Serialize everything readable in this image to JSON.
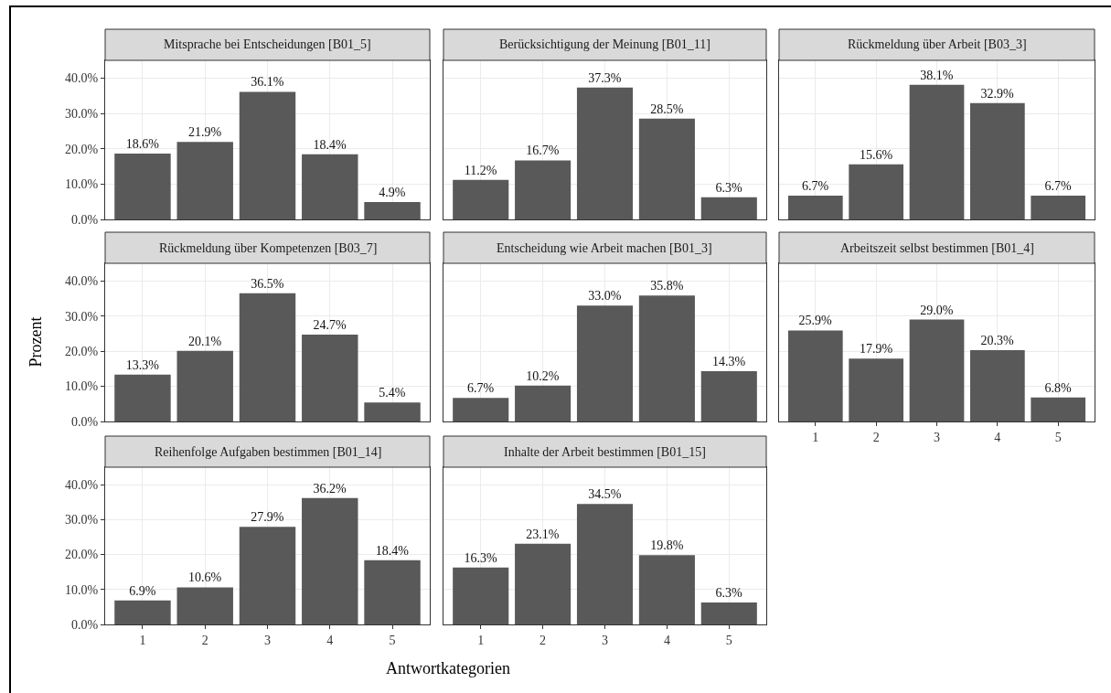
{
  "chart_data": [
    {
      "type": "bar",
      "title": "Mitsprache bei Entscheidungen [B01_5]",
      "categories": [
        "1",
        "2",
        "3",
        "4",
        "5"
      ],
      "values": [
        18.6,
        21.9,
        36.1,
        18.4,
        4.9
      ],
      "value_labels": [
        "18.6%",
        "21.9%",
        "36.1%",
        "18.4%",
        "4.9%"
      ],
      "color": "#595959",
      "ylim": [
        0,
        45
      ],
      "yticks": [
        {
          "value": 0,
          "label": "0.0%"
        },
        {
          "value": 10,
          "label": "10.0%"
        },
        {
          "value": 20,
          "label": "20.0%"
        },
        {
          "value": 30,
          "label": "30.0%"
        },
        {
          "value": 40,
          "label": "40.0%"
        }
      ],
      "grid": true,
      "tick_labels": "y"
    },
    {
      "type": "bar",
      "title": "Berücksichtigung der Meinung [B01_11]",
      "categories": [
        "1",
        "2",
        "3",
        "4",
        "5"
      ],
      "values": [
        11.2,
        16.7,
        37.3,
        28.5,
        6.3
      ],
      "value_labels": [
        "11.2%",
        "16.7%",
        "37.3%",
        "28.5%",
        "6.3%"
      ],
      "color": "#595959",
      "ylim": [
        0,
        45
      ],
      "yticks": [
        {
          "value": 0,
          "label": null
        },
        {
          "value": 10,
          "label": null
        },
        {
          "value": 20,
          "label": null
        },
        {
          "value": 30,
          "label": null
        },
        {
          "value": 40,
          "label": null
        }
      ],
      "grid": true,
      "tick_labels": false
    },
    {
      "type": "bar",
      "title": "Rückmeldung über Arbeit [B03_3]",
      "categories": [
        "1",
        "2",
        "3",
        "4",
        "5"
      ],
      "values": [
        6.7,
        15.6,
        38.1,
        32.9,
        6.7
      ],
      "value_labels": [
        "6.7%",
        "15.6%",
        "38.1%",
        "32.9%",
        "6.7%"
      ],
      "color": "#595959",
      "ylim": [
        0,
        45
      ],
      "yticks": [
        {
          "value": 0,
          "label": null
        },
        {
          "value": 10,
          "label": null
        },
        {
          "value": 20,
          "label": null
        },
        {
          "value": 30,
          "label": null
        },
        {
          "value": 40,
          "label": null
        }
      ],
      "grid": true,
      "tick_labels": false
    },
    {
      "type": "bar",
      "title": "Rückmeldung über Kompetenzen [B03_7]",
      "ylabel": "Prozent",
      "categories": [
        "1",
        "2",
        "3",
        "4",
        "5"
      ],
      "values": [
        13.3,
        20.1,
        36.5,
        24.7,
        5.4
      ],
      "value_labels": [
        "13.3%",
        "20.1%",
        "36.5%",
        "24.7%",
        "5.4%"
      ],
      "color": "#595959",
      "ylim": [
        0,
        45
      ],
      "yticks": [
        {
          "value": 0,
          "label": "0.0%"
        },
        {
          "value": 10,
          "label": "10.0%"
        },
        {
          "value": 20,
          "label": "20.0%"
        },
        {
          "value": 30,
          "label": "30.0%"
        },
        {
          "value": 40,
          "label": "40.0%"
        }
      ],
      "grid": true,
      "tick_labels": "y"
    },
    {
      "type": "bar",
      "title": "Entscheidung wie Arbeit machen [B01_3]",
      "categories": [
        "1",
        "2",
        "3",
        "4",
        "5"
      ],
      "values": [
        6.7,
        10.2,
        33.0,
        35.8,
        14.3
      ],
      "value_labels": [
        "6.7%",
        "10.2%",
        "33.0%",
        "35.8%",
        "14.3%"
      ],
      "color": "#595959",
      "ylim": [
        0,
        45
      ],
      "yticks": [
        {
          "value": 0,
          "label": null
        },
        {
          "value": 10,
          "label": null
        },
        {
          "value": 20,
          "label": null
        },
        {
          "value": 30,
          "label": null
        },
        {
          "value": 40,
          "label": null
        }
      ],
      "grid": true,
      "tick_labels": false
    },
    {
      "type": "bar",
      "title": "Arbeitszeit selbst bestimmen [B01_4]",
      "categories": [
        "1",
        "2",
        "3",
        "4",
        "5"
      ],
      "values": [
        25.9,
        17.9,
        29.0,
        20.3,
        6.8
      ],
      "value_labels": [
        "25.9%",
        "17.9%",
        "29.0%",
        "20.3%",
        "6.8%"
      ],
      "color": "#595959",
      "ylim": [
        0,
        45
      ],
      "yticks": [
        {
          "value": 0,
          "label": null
        },
        {
          "value": 10,
          "label": null
        },
        {
          "value": 20,
          "label": null
        },
        {
          "value": 30,
          "label": null
        },
        {
          "value": 40,
          "label": null
        }
      ],
      "grid": true,
      "tick_labels": "x"
    },
    {
      "type": "bar",
      "title": "Reihenfolge Aufgaben bestimmen [B01_14]",
      "categories": [
        "1",
        "2",
        "3",
        "4",
        "5"
      ],
      "values": [
        6.9,
        10.6,
        27.9,
        36.2,
        18.4
      ],
      "value_labels": [
        "6.9%",
        "10.6%",
        "27.9%",
        "36.2%",
        "18.4%"
      ],
      "color": "#595959",
      "ylim": [
        0,
        45
      ],
      "yticks": [
        {
          "value": 0,
          "label": "0.0%"
        },
        {
          "value": 10,
          "label": "10.0%"
        },
        {
          "value": 20,
          "label": "20.0%"
        },
        {
          "value": 30,
          "label": "30.0%"
        },
        {
          "value": 40,
          "label": "40.0%"
        }
      ],
      "grid": true
    },
    {
      "type": "bar",
      "title": "Inhalte der Arbeit bestimmen [B01_15]",
      "xlabel": "Antwortkategorien",
      "categories": [
        "1",
        "2",
        "3",
        "4",
        "5"
      ],
      "values": [
        16.3,
        23.1,
        34.5,
        19.8,
        6.3
      ],
      "value_labels": [
        "16.3%",
        "23.1%",
        "34.5%",
        "19.8%",
        "6.3%"
      ],
      "color": "#595959",
      "ylim": [
        0,
        45
      ],
      "yticks": [
        {
          "value": 0,
          "label": null
        },
        {
          "value": 10,
          "label": null
        },
        {
          "value": 20,
          "label": null
        },
        {
          "value": 30,
          "label": null
        },
        {
          "value": 40,
          "label": null
        }
      ],
      "grid": true,
      "tick_labels": "x"
    }
  ]
}
